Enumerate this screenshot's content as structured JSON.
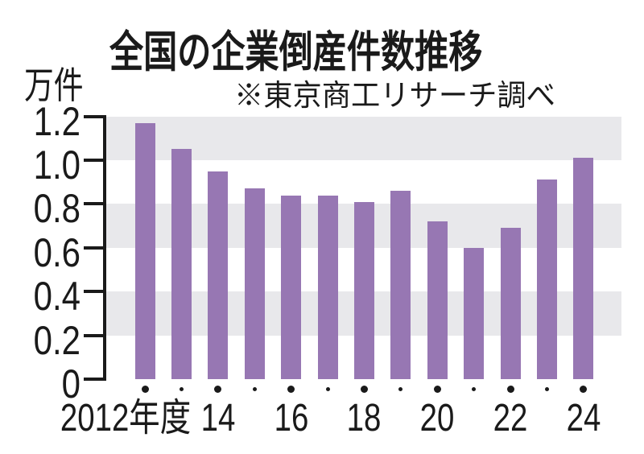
{
  "title": "全国の企業倒産件数推移",
  "source_note": "※東京商工リサーチ調べ",
  "unit_label": "万件",
  "colors": {
    "bar": "#9777b3",
    "grid_band": "#e8e8eb",
    "axis": "#1a1a1a",
    "text": "#1a1a1a",
    "background": "#ffffff"
  },
  "chart_data": {
    "type": "bar",
    "title": "全国の企業倒産件数推移",
    "source": "※東京商工リサーチ調べ",
    "ylabel": "万件",
    "ylim": [
      0,
      1.2
    ],
    "y_ticks": [
      0,
      0.2,
      0.4,
      0.6,
      0.8,
      1.0,
      1.2
    ],
    "y_tick_labels": [
      "0",
      "0.2",
      "0.4",
      "0.6",
      "0.8",
      "1.0",
      "1.2"
    ],
    "categories": [
      "2012",
      "2013",
      "2014",
      "2015",
      "2016",
      "2017",
      "2018",
      "2019",
      "2020",
      "2021",
      "2022",
      "2023",
      "2024"
    ],
    "values": [
      1.17,
      1.05,
      0.95,
      0.87,
      0.84,
      0.84,
      0.81,
      0.86,
      0.72,
      0.6,
      0.69,
      0.91,
      1.01
    ],
    "x_tick_labels": [
      "2012年度",
      "",
      "14",
      "",
      "16",
      "",
      "18",
      "",
      "20",
      "",
      "22",
      "",
      "24"
    ],
    "x_major_tick_every": 2,
    "grid_bands": [
      [
        1.0,
        1.2
      ],
      [
        0.6,
        0.8
      ],
      [
        0.2,
        0.4
      ]
    ],
    "legend": null,
    "grid": "striped-bands"
  }
}
